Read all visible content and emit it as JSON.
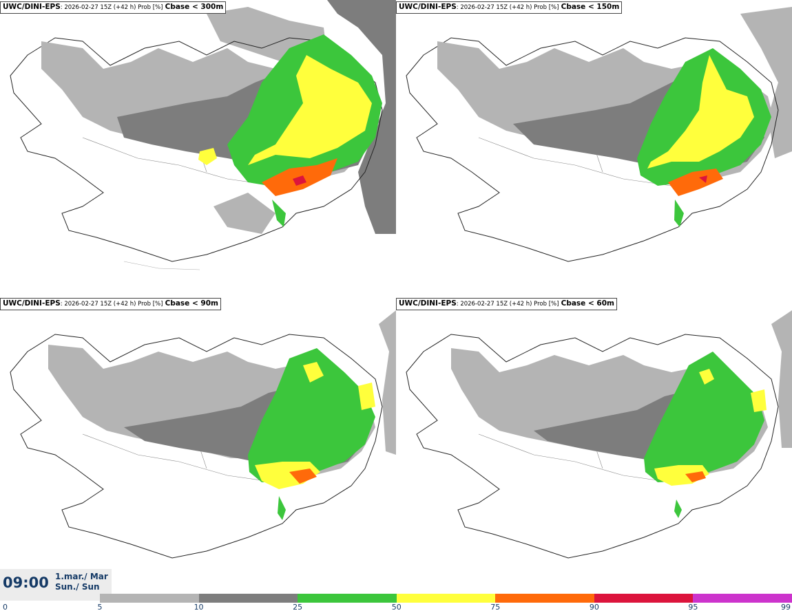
{
  "panels": [
    {
      "model": "UWC/DINI-EPS",
      "meta": ": 2026-02-27 15Z (+42 h) Prob [%]",
      "field": "Cbase < 300m"
    },
    {
      "model": "UWC/DINI-EPS",
      "meta": ": 2026-02-27 15Z (+42 h) Prob [%]",
      "field": "Cbase < 150m"
    },
    {
      "model": "UWC/DINI-EPS",
      "meta": ": 2026-02-27 15Z (+42 h) Prob [%]",
      "field": "Cbase < 90m"
    },
    {
      "model": "UWC/DINI-EPS",
      "meta": ": 2026-02-27 15Z (+42 h) Prob [%]",
      "field": "Cbase < 60m"
    }
  ],
  "time": {
    "clock": "09:00",
    "date_line1": "1.mar./ Mar",
    "date_line2": "Sun./ Sun"
  },
  "colorbar": {
    "ticks": [
      "0",
      "5",
      "10",
      "25",
      "50",
      "75",
      "90",
      "95",
      "99"
    ],
    "bins": [
      {
        "from": 5,
        "to": 10,
        "color": "#b4b4b4"
      },
      {
        "from": 10,
        "to": 25,
        "color": "#7d7d7d"
      },
      {
        "from": 25,
        "to": 50,
        "color": "#3cc63c"
      },
      {
        "from": 50,
        "to": 75,
        "color": "#ffff3c"
      },
      {
        "from": 75,
        "to": 90,
        "color": "#ff6a0a"
      },
      {
        "from": 90,
        "to": 95,
        "color": "#dc143c"
      },
      {
        "from": 95,
        "to": 99,
        "color": "#cc33cc"
      }
    ]
  }
}
